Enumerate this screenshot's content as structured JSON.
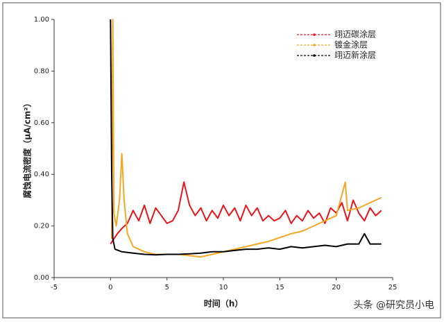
{
  "chart_data": {
    "type": "line",
    "xlabel": "时间（h）",
    "ylabel": "腐蚀电流密度（μA/cm²）",
    "watermark": "头条 @研究员小电",
    "xlim": [
      -5,
      25
    ],
    "xticks": [
      -5,
      0,
      5,
      10,
      15,
      20,
      25
    ],
    "ylim": [
      0,
      1
    ],
    "yticks": [
      {
        "value": 0,
        "label": "0.00"
      },
      {
        "value": 0.2,
        "label": "0.20"
      },
      {
        "value": 0.4,
        "label": "0.40"
      },
      {
        "value": 0.6,
        "label": "0.60"
      },
      {
        "value": 0.8,
        "label": "0.80"
      },
      {
        "value": 1,
        "label": "1.00"
      }
    ],
    "legend": "top-right",
    "series": [
      {
        "name": "翊迈碳涂层",
        "color": "#e8141a",
        "x": [
          0,
          0.3,
          0.6,
          1,
          1.5,
          2,
          2.5,
          3,
          3.5,
          4,
          4.5,
          5,
          5.5,
          6,
          6.5,
          7,
          7.5,
          8,
          8.5,
          9,
          9.5,
          10,
          10.5,
          11,
          11.5,
          12,
          12.5,
          13,
          13.5,
          14,
          14.5,
          15,
          15.5,
          16,
          16.5,
          17,
          17.5,
          18,
          18.5,
          19,
          19.5,
          20,
          20.5,
          21,
          21.5,
          22,
          22.5,
          23,
          23.5,
          24
        ],
        "values": [
          0.13,
          0.15,
          0.17,
          0.19,
          0.21,
          0.26,
          0.22,
          0.28,
          0.21,
          0.27,
          0.24,
          0.21,
          0.22,
          0.26,
          0.37,
          0.28,
          0.24,
          0.27,
          0.22,
          0.26,
          0.23,
          0.28,
          0.24,
          0.27,
          0.22,
          0.28,
          0.24,
          0.27,
          0.22,
          0.24,
          0.22,
          0.23,
          0.26,
          0.21,
          0.24,
          0.22,
          0.26,
          0.23,
          0.25,
          0.21,
          0.27,
          0.25,
          0.29,
          0.22,
          0.3,
          0.25,
          0.22,
          0.27,
          0.24,
          0.26
        ]
      },
      {
        "name": "镀金涂层",
        "color": "#f5a623",
        "x": [
          0.1,
          0.2,
          0.3,
          0.5,
          0.8,
          1,
          1.2,
          1.5,
          2,
          3,
          4,
          5,
          6,
          7,
          8,
          9,
          10,
          11,
          12,
          13,
          14,
          15,
          16,
          17,
          18,
          19,
          20,
          20.8,
          21,
          22,
          23,
          24
        ],
        "values": [
          0.15,
          1,
          0.25,
          0.2,
          0.3,
          0.48,
          0.3,
          0.17,
          0.12,
          0.1,
          0.09,
          0.09,
          0.09,
          0.085,
          0.08,
          0.09,
          0.1,
          0.11,
          0.12,
          0.13,
          0.14,
          0.155,
          0.17,
          0.18,
          0.2,
          0.22,
          0.24,
          0.37,
          0.26,
          0.27,
          0.29,
          0.31
        ]
      },
      {
        "name": "翊迈新涂层",
        "color": "#000000",
        "x": [
          0,
          0.1,
          0.2,
          0.4,
          1,
          2,
          3,
          4,
          5,
          6,
          7,
          8,
          9,
          10,
          11,
          12,
          13,
          14,
          15,
          16,
          17,
          18,
          19,
          20,
          21,
          22,
          22.5,
          23,
          24
        ],
        "values": [
          1,
          0.4,
          0.15,
          0.11,
          0.1,
          0.095,
          0.09,
          0.088,
          0.09,
          0.09,
          0.092,
          0.095,
          0.1,
          0.1,
          0.105,
          0.11,
          0.11,
          0.115,
          0.11,
          0.12,
          0.115,
          0.12,
          0.125,
          0.12,
          0.13,
          0.13,
          0.17,
          0.13,
          0.13
        ]
      }
    ]
  }
}
